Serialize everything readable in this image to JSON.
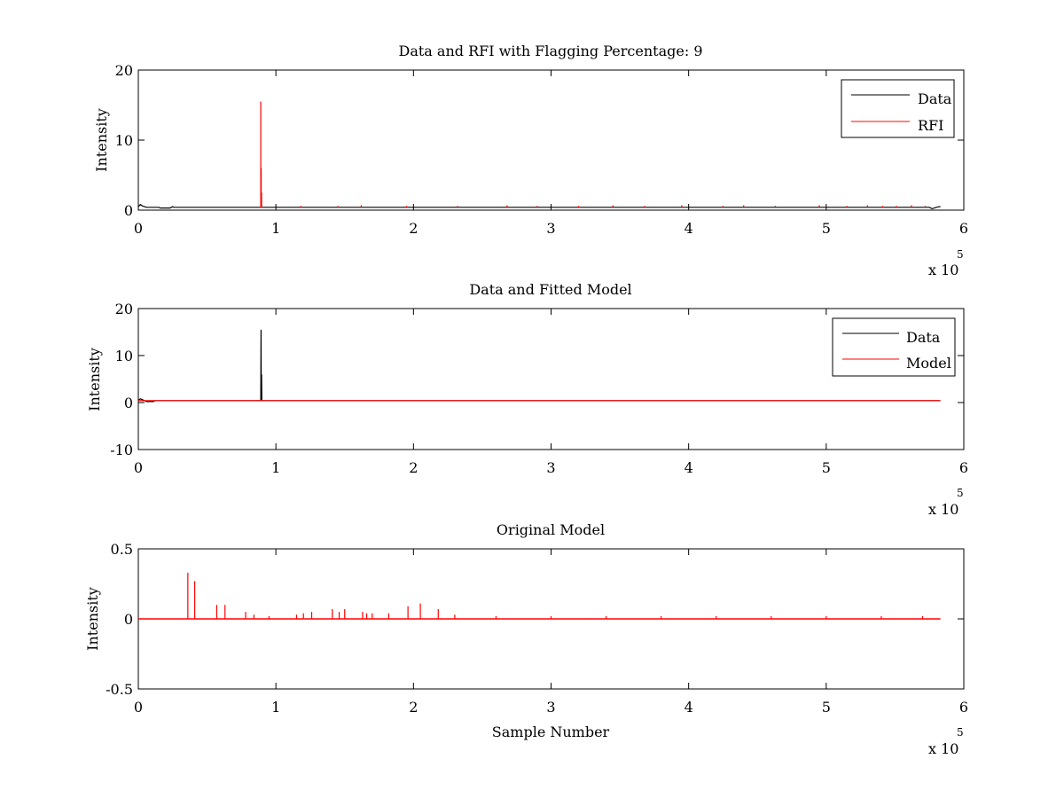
{
  "chart_data": [
    {
      "type": "line",
      "title": "Data and RFI with Flagging Percentage: 9",
      "xlabel": "",
      "ylabel": "Intensity",
      "xlim": [
        0,
        600000
      ],
      "ylim": [
        0,
        20
      ],
      "xticks": [
        0,
        100000,
        200000,
        300000,
        400000,
        500000,
        600000
      ],
      "xtick_labels": [
        "0",
        "1",
        "2",
        "3",
        "4",
        "5",
        "6"
      ],
      "yticks": [
        0,
        10,
        20
      ],
      "ytick_labels": [
        "0",
        "10",
        "20"
      ],
      "x_multiplier_label": "x 10",
      "x_multiplier_exp": "5",
      "legend": {
        "position": "top-right",
        "entries": [
          {
            "name": "Data",
            "color": "#000000"
          },
          {
            "name": "RFI",
            "color": "#ff0000"
          }
        ]
      },
      "series": [
        {
          "name": "Data",
          "color": "#000000",
          "x": [
            0,
            1500,
            3000,
            6000,
            15000,
            16000,
            23000,
            25000,
            26000,
            89000,
            89500,
            90000,
            91000,
            120000,
            200000,
            300000,
            400000,
            500000,
            575000,
            577000,
            580000,
            582000,
            583000
          ],
          "y": [
            0.5,
            0.8,
            0.6,
            0.4,
            0.4,
            0.3,
            0.3,
            0.5,
            0.4,
            0.4,
            0.4,
            0.4,
            0.4,
            0.4,
            0.4,
            0.4,
            0.4,
            0.4,
            0.4,
            0.2,
            0.4,
            0.5,
            0.5
          ]
        },
        {
          "name": "RFI",
          "color": "#ff0000",
          "spikes": [
            [
              89000,
              15.5
            ],
            [
              89300,
              6.0
            ],
            [
              89600,
              2.5
            ],
            [
              118000,
              0.6
            ],
            [
              145000,
              0.6
            ],
            [
              162000,
              0.7
            ],
            [
              195000,
              0.6
            ],
            [
              232000,
              0.6
            ],
            [
              268000,
              0.7
            ],
            [
              290000,
              0.6
            ],
            [
              320000,
              0.6
            ],
            [
              345000,
              0.7
            ],
            [
              368000,
              0.6
            ],
            [
              395000,
              0.7
            ],
            [
              425000,
              0.6
            ],
            [
              440000,
              0.7
            ],
            [
              463000,
              0.6
            ],
            [
              495000,
              0.7
            ],
            [
              515000,
              0.6
            ],
            [
              530000,
              0.7
            ],
            [
              541000,
              0.6
            ],
            [
              551000,
              0.6
            ],
            [
              562000,
              0.7
            ],
            [
              572000,
              0.6
            ]
          ]
        }
      ]
    },
    {
      "type": "line",
      "title": "Data and Fitted Model",
      "xlabel": "",
      "ylabel": "Intensity",
      "xlim": [
        0,
        600000
      ],
      "ylim": [
        -10,
        20
      ],
      "xticks": [
        0,
        100000,
        200000,
        300000,
        400000,
        500000,
        600000
      ],
      "xtick_labels": [
        "0",
        "1",
        "2",
        "3",
        "4",
        "5",
        "6"
      ],
      "yticks": [
        -10,
        0,
        10,
        20
      ],
      "ytick_labels": [
        "-10",
        "0",
        "10",
        "20"
      ],
      "x_multiplier_label": "x 10",
      "x_multiplier_exp": "5",
      "legend": {
        "position": "top-right",
        "entries": [
          {
            "name": "Data",
            "color": "#000000"
          },
          {
            "name": "Model",
            "color": "#ff0000"
          }
        ]
      },
      "series": [
        {
          "name": "Data",
          "color": "#000000",
          "x": [
            0,
            1500,
            3000,
            6000,
            11000,
            12000,
            89000,
            89200,
            89400,
            89600,
            89800,
            120000,
            300000,
            583000
          ],
          "y": [
            0.5,
            0.8,
            0.6,
            0.2,
            0.2,
            0.4,
            0.4,
            15.5,
            0.4,
            6.0,
            0.4,
            0.4,
            0.4,
            0.4
          ]
        },
        {
          "name": "Model",
          "color": "#ff0000",
          "x": [
            0,
            583000
          ],
          "y": [
            0.4,
            0.4
          ]
        }
      ]
    },
    {
      "type": "line",
      "title": "Original Model",
      "xlabel": "Sample Number",
      "ylabel": "Intensity",
      "xlim": [
        0,
        600000
      ],
      "ylim": [
        -0.5,
        0.5
      ],
      "xticks": [
        0,
        100000,
        200000,
        300000,
        400000,
        500000,
        600000
      ],
      "xtick_labels": [
        "0",
        "1",
        "2",
        "3",
        "4",
        "5",
        "6"
      ],
      "yticks": [
        -0.5,
        0,
        0.5
      ],
      "ytick_labels": [
        "-0.5",
        "0",
        "0.5"
      ],
      "x_multiplier_label": "x 10",
      "x_multiplier_exp": "5",
      "series": [
        {
          "name": "",
          "color": "#ff0000",
          "spikes": [
            [
              36000,
              0.33
            ],
            [
              41000,
              0.27
            ],
            [
              57000,
              0.1
            ],
            [
              63000,
              0.1
            ],
            [
              78000,
              0.05
            ],
            [
              84000,
              0.03
            ],
            [
              95000,
              0.02
            ],
            [
              115000,
              0.03
            ],
            [
              120000,
              0.04
            ],
            [
              126000,
              0.05
            ],
            [
              141000,
              0.07
            ],
            [
              146000,
              0.05
            ],
            [
              150000,
              0.07
            ],
            [
              163000,
              0.05
            ],
            [
              166000,
              0.04
            ],
            [
              170000,
              0.04
            ],
            [
              182000,
              0.04
            ],
            [
              196000,
              0.09
            ],
            [
              205000,
              0.11
            ],
            [
              218000,
              0.07
            ],
            [
              230000,
              0.03
            ],
            [
              260000,
              0.02
            ],
            [
              300000,
              0.02
            ],
            [
              340000,
              0.02
            ],
            [
              380000,
              0.02
            ],
            [
              420000,
              0.02
            ],
            [
              460000,
              0.02
            ],
            [
              500000,
              0.02
            ],
            [
              540000,
              0.02
            ],
            [
              570000,
              0.02
            ]
          ],
          "baseline": 0.0
        }
      ]
    }
  ]
}
